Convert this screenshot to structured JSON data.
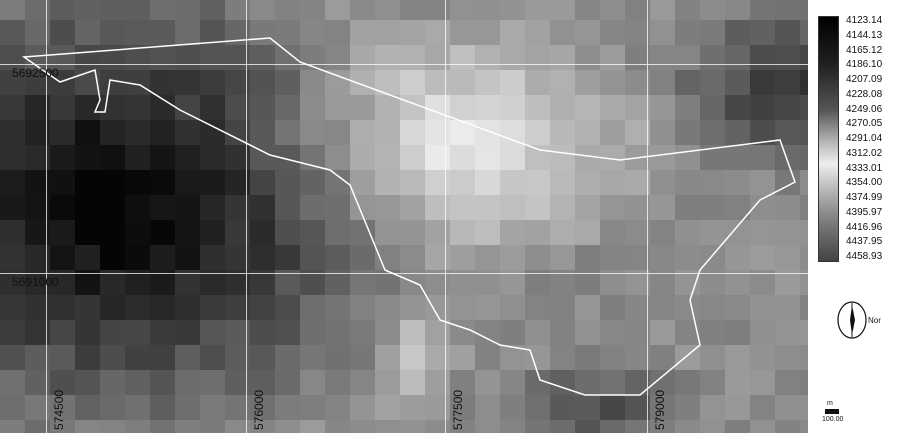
{
  "map": {
    "y_labels": [
      "5692500",
      "5691000"
    ],
    "x_labels": [
      "574500",
      "576000",
      "577500",
      "579000"
    ],
    "colors": {
      "boundary": "#ffffff",
      "grid": "#ffffff",
      "low": "#0a0a0a",
      "high": "#e6e6e6"
    }
  },
  "legend": {
    "values": [
      "4123.14",
      "4144.13",
      "4165.12",
      "4186.10",
      "4207.09",
      "4228.08",
      "4249.06",
      "4270.05",
      "4291.04",
      "4312.02",
      "4333.01",
      "4354.00",
      "4374.99",
      "4395.97",
      "4416.96",
      "4437.95",
      "4458.93"
    ]
  },
  "compass": {
    "label": "Nor"
  },
  "scale": {
    "unit": "m",
    "value": "100.00"
  }
}
